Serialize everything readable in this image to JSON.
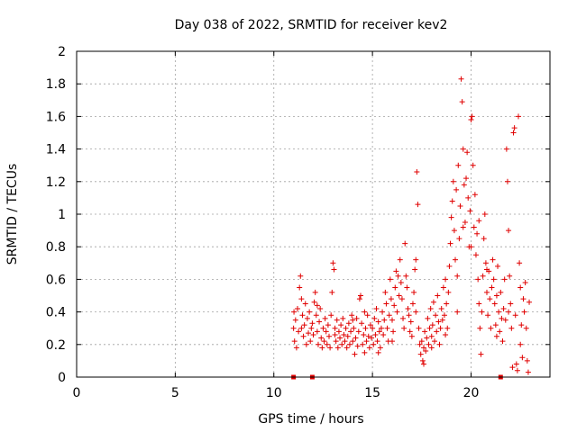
{
  "chart_data": {
    "type": "scatter",
    "title": "Day 038 of 2022, SRMTID for receiver kev2",
    "xlabel": "GPS time / hours",
    "ylabel": "SRMTID / TECUs",
    "xlim": [
      0,
      24
    ],
    "ylim": [
      0,
      2
    ],
    "xticks": [
      0,
      5,
      10,
      15,
      20
    ],
    "xtick_labels": [
      "0",
      "5",
      "10",
      "15",
      "20"
    ],
    "yticks": [
      0,
      0.2,
      0.4,
      0.6,
      0.8,
      1,
      1.2,
      1.4,
      1.6,
      1.8,
      2
    ],
    "ytick_labels": [
      "0",
      "0.2",
      "0.4",
      "0.6",
      "0.8",
      "1",
      "1.2",
      "1.4",
      "1.6",
      "1.8",
      "2"
    ],
    "grid": true,
    "marker": "+",
    "color": "#e00000",
    "series": [
      {
        "name": "SRMTID kev2",
        "points": [
          [
            11.0,
            0.3
          ],
          [
            11.05,
            0.22
          ],
          [
            11.1,
            0.35
          ],
          [
            11.15,
            0.18
          ],
          [
            11.2,
            0.42
          ],
          [
            11.25,
            0.28
          ],
          [
            11.3,
            0.55
          ],
          [
            11.35,
            0.62
          ],
          [
            11.4,
            0.48
          ],
          [
            11.45,
            0.38
          ],
          [
            11.5,
            0.25
          ],
          [
            11.55,
            0.32
          ],
          [
            11.6,
            0.45
          ],
          [
            11.65,
            0.2
          ],
          [
            11.7,
            0.36
          ],
          [
            11.75,
            0.27
          ],
          [
            11.8,
            0.4
          ],
          [
            11.85,
            0.22
          ],
          [
            11.9,
            0.3
          ],
          [
            11.95,
            0.33
          ],
          [
            12.0,
            0.26
          ],
          [
            12.05,
            0.46
          ],
          [
            12.1,
            0.52
          ],
          [
            12.15,
            0.38
          ],
          [
            12.2,
            0.28
          ],
          [
            12.25,
            0.2
          ],
          [
            12.3,
            0.34
          ],
          [
            12.35,
            0.42
          ],
          [
            12.4,
            0.24
          ],
          [
            12.45,
            0.18
          ],
          [
            12.5,
            0.3
          ],
          [
            12.55,
            0.22
          ],
          [
            12.6,
            0.36
          ],
          [
            12.65,
            0.28
          ],
          [
            12.7,
            0.2
          ],
          [
            12.75,
            0.32
          ],
          [
            12.8,
            0.25
          ],
          [
            12.85,
            0.18
          ],
          [
            12.9,
            0.38
          ],
          [
            12.95,
            0.52
          ],
          [
            13.0,
            0.7
          ],
          [
            13.05,
            0.66
          ],
          [
            13.1,
            0.3
          ],
          [
            13.15,
            0.22
          ],
          [
            13.2,
            0.35
          ],
          [
            13.25,
            0.18
          ],
          [
            13.3,
            0.28
          ],
          [
            13.35,
            0.24
          ],
          [
            13.4,
            0.32
          ],
          [
            13.45,
            0.2
          ],
          [
            13.5,
            0.36
          ],
          [
            13.55,
            0.26
          ],
          [
            13.6,
            0.22
          ],
          [
            13.65,
            0.3
          ],
          [
            13.7,
            0.18
          ],
          [
            13.75,
            0.25
          ],
          [
            13.8,
            0.33
          ],
          [
            13.85,
            0.2
          ],
          [
            13.9,
            0.28
          ],
          [
            13.95,
            0.38
          ],
          [
            14.0,
            0.22
          ],
          [
            14.05,
            0.3
          ],
          [
            14.1,
            0.14
          ],
          [
            14.15,
            0.24
          ],
          [
            14.2,
            0.36
          ],
          [
            14.25,
            0.19
          ],
          [
            14.3,
            0.28
          ],
          [
            14.35,
            0.48
          ],
          [
            14.4,
            0.5
          ],
          [
            14.45,
            0.33
          ],
          [
            14.5,
            0.2
          ],
          [
            14.55,
            0.26
          ],
          [
            14.6,
            0.15
          ],
          [
            14.65,
            0.3
          ],
          [
            14.7,
            0.22
          ],
          [
            14.75,
            0.38
          ],
          [
            14.8,
            0.25
          ],
          [
            14.85,
            0.18
          ],
          [
            14.9,
            0.32
          ],
          [
            14.95,
            0.24
          ],
          [
            15.0,
            0.3
          ],
          [
            15.05,
            0.2
          ],
          [
            15.1,
            0.36
          ],
          [
            15.15,
            0.26
          ],
          [
            15.2,
            0.42
          ],
          [
            15.25,
            0.22
          ],
          [
            15.3,
            0.34
          ],
          [
            15.35,
            0.28
          ],
          [
            15.4,
            0.18
          ],
          [
            15.45,
            0.3
          ],
          [
            15.5,
            0.4
          ],
          [
            15.55,
            0.26
          ],
          [
            15.6,
            0.35
          ],
          [
            15.65,
            0.52
          ],
          [
            15.7,
            0.45
          ],
          [
            15.75,
            0.3
          ],
          [
            15.8,
            0.22
          ],
          [
            15.85,
            0.38
          ],
          [
            15.9,
            0.6
          ],
          [
            15.95,
            0.48
          ],
          [
            16.0,
            0.35
          ],
          [
            16.05,
            0.28
          ],
          [
            16.1,
            0.44
          ],
          [
            16.15,
            0.55
          ],
          [
            16.2,
            0.65
          ],
          [
            16.25,
            0.4
          ],
          [
            16.3,
            0.62
          ],
          [
            16.35,
            0.5
          ],
          [
            16.4,
            0.72
          ],
          [
            16.45,
            0.58
          ],
          [
            16.5,
            0.48
          ],
          [
            16.55,
            0.36
          ],
          [
            16.6,
            0.3
          ],
          [
            16.65,
            0.82
          ],
          [
            16.7,
            0.62
          ],
          [
            16.75,
            0.55
          ],
          [
            16.8,
            0.42
          ],
          [
            16.85,
            0.38
          ],
          [
            16.9,
            0.28
          ],
          [
            16.95,
            0.34
          ],
          [
            17.0,
            0.25
          ],
          [
            17.05,
            0.45
          ],
          [
            17.1,
            0.52
          ],
          [
            17.15,
            0.66
          ],
          [
            17.2,
            0.72
          ],
          [
            17.25,
            1.26
          ],
          [
            17.3,
            1.06
          ],
          [
            17.35,
            0.3
          ],
          [
            17.4,
            0.2
          ],
          [
            17.45,
            0.14
          ],
          [
            17.5,
            0.22
          ],
          [
            17.55,
            0.1
          ],
          [
            17.6,
            0.18
          ],
          [
            17.65,
            0.28
          ],
          [
            17.7,
            0.16
          ],
          [
            17.75,
            0.24
          ],
          [
            17.8,
            0.36
          ],
          [
            17.85,
            0.2
          ],
          [
            17.9,
            0.3
          ],
          [
            17.95,
            0.42
          ],
          [
            18.0,
            0.25
          ],
          [
            18.05,
            0.32
          ],
          [
            18.1,
            0.46
          ],
          [
            18.15,
            0.22
          ],
          [
            18.2,
            0.38
          ],
          [
            18.25,
            0.28
          ],
          [
            18.3,
            0.5
          ],
          [
            18.35,
            0.34
          ],
          [
            18.4,
            0.2
          ],
          [
            18.45,
            0.3
          ],
          [
            18.5,
            0.42
          ],
          [
            18.55,
            0.35
          ],
          [
            18.6,
            0.55
          ],
          [
            18.65,
            0.38
          ],
          [
            18.7,
            0.6
          ],
          [
            18.75,
            0.45
          ],
          [
            18.8,
            0.3
          ],
          [
            18.85,
            0.52
          ],
          [
            18.9,
            0.68
          ],
          [
            18.95,
            0.82
          ],
          [
            19.0,
            0.98
          ],
          [
            19.05,
            1.08
          ],
          [
            19.1,
            1.2
          ],
          [
            19.15,
            0.9
          ],
          [
            19.2,
            0.72
          ],
          [
            19.25,
            1.15
          ],
          [
            19.3,
            0.62
          ],
          [
            19.35,
            1.3
          ],
          [
            19.4,
            0.85
          ],
          [
            19.45,
            1.05
          ],
          [
            19.5,
            1.83
          ],
          [
            19.55,
            1.69
          ],
          [
            19.6,
            1.4
          ],
          [
            19.65,
            1.18
          ],
          [
            19.7,
            0.95
          ],
          [
            19.75,
            1.22
          ],
          [
            19.8,
            1.38
          ],
          [
            19.85,
            1.1
          ],
          [
            19.9,
            0.8
          ],
          [
            19.95,
            1.02
          ],
          [
            20.0,
            1.58
          ],
          [
            20.05,
            1.6
          ],
          [
            20.1,
            1.3
          ],
          [
            20.15,
            0.92
          ],
          [
            20.2,
            1.12
          ],
          [
            20.25,
            0.75
          ],
          [
            20.3,
            0.88
          ],
          [
            20.35,
            0.6
          ],
          [
            20.4,
            0.45
          ],
          [
            20.45,
            0.3
          ],
          [
            20.5,
            0.14
          ],
          [
            20.55,
            0.4
          ],
          [
            20.6,
            0.62
          ],
          [
            20.65,
            0.85
          ],
          [
            20.7,
            1.0
          ],
          [
            20.75,
            0.7
          ],
          [
            20.8,
            0.52
          ],
          [
            20.85,
            0.38
          ],
          [
            20.9,
            0.65
          ],
          [
            20.95,
            0.48
          ],
          [
            21.0,
            0.3
          ],
          [
            21.05,
            0.55
          ],
          [
            21.1,
            0.72
          ],
          [
            21.15,
            0.6
          ],
          [
            21.2,
            0.45
          ],
          [
            21.25,
            0.32
          ],
          [
            21.3,
            0.5
          ],
          [
            21.35,
            0.68
          ],
          [
            21.4,
            0.4
          ],
          [
            21.45,
            0.28
          ],
          [
            21.5,
            0.52
          ],
          [
            21.55,
            0.36
          ],
          [
            21.6,
            0.22
          ],
          [
            21.65,
            0.42
          ],
          [
            21.7,
            0.6
          ],
          [
            21.75,
            0.35
          ],
          [
            21.8,
            1.4
          ],
          [
            21.85,
            1.2
          ],
          [
            21.9,
            0.9
          ],
          [
            21.95,
            0.62
          ],
          [
            22.0,
            0.45
          ],
          [
            22.05,
            0.3
          ],
          [
            22.1,
            0.06
          ],
          [
            22.15,
            1.5
          ],
          [
            22.2,
            1.53
          ],
          [
            22.25,
            0.38
          ],
          [
            22.3,
            0.08
          ],
          [
            22.35,
            0.04
          ],
          [
            22.4,
            1.6
          ],
          [
            22.45,
            0.7
          ],
          [
            22.5,
            0.55
          ],
          [
            22.55,
            0.32
          ],
          [
            22.6,
            0.12
          ],
          [
            22.65,
            0.48
          ],
          [
            22.7,
            0.4
          ],
          [
            22.75,
            0.58
          ],
          [
            22.8,
            0.3
          ],
          [
            22.85,
            0.1
          ],
          [
            22.9,
            0.03
          ],
          [
            22.95,
            0.46
          ],
          [
            11.02,
            0.4
          ],
          [
            11.4,
            0.3
          ],
          [
            12.2,
            0.44
          ],
          [
            13.1,
            0.26
          ],
          [
            14.0,
            0.35
          ],
          [
            14.6,
            0.4
          ],
          [
            15.3,
            0.15
          ],
          [
            16.0,
            0.22
          ],
          [
            17.2,
            0.4
          ],
          [
            17.6,
            0.08
          ],
          [
            18.0,
            0.18
          ],
          [
            18.7,
            0.26
          ],
          [
            19.3,
            0.4
          ],
          [
            19.6,
            0.92
          ],
          [
            20.0,
            0.8
          ],
          [
            20.4,
            0.96
          ],
          [
            20.8,
            0.66
          ],
          [
            21.3,
            0.25
          ],
          [
            21.9,
            0.4
          ],
          [
            22.5,
            0.2
          ]
        ],
        "zero_markers": [
          11.0,
          11.95,
          21.5
        ]
      }
    ]
  }
}
